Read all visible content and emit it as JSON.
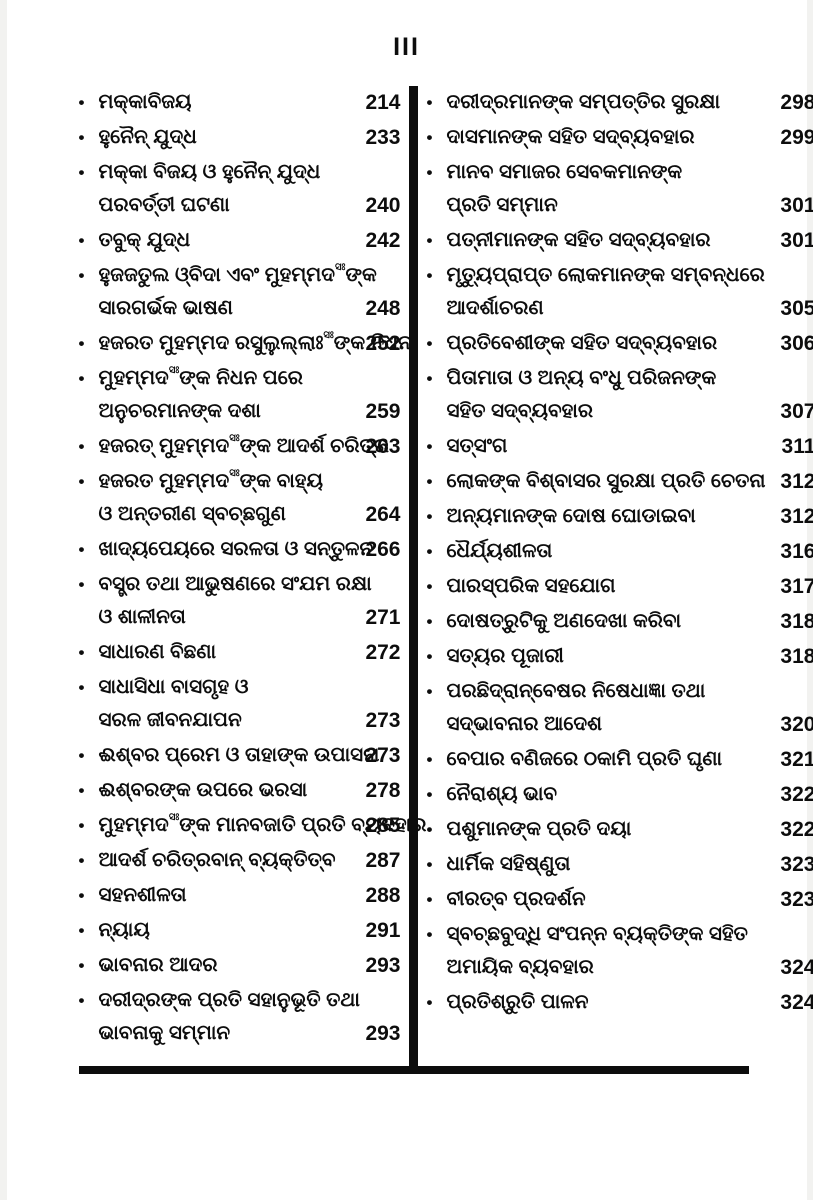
{
  "page": {
    "folio": "III",
    "honorific_mark": "ସଃ"
  },
  "colors": {
    "ink": "#0d0d0d",
    "paper": "#ffffff"
  },
  "toc": {
    "left_column": [
      {
        "lines": [
          "ମକ୍କାବିଜୟ"
        ],
        "page": "214"
      },
      {
        "lines": [
          "ହୁନୈନ୍ ଯୁଦ୍ଧ"
        ],
        "page": "233"
      },
      {
        "lines": [
          "ମକ୍କା ବିଜୟ ଓ ହୁନୈନ୍ ଯୁଦ୍ଧ",
          "ପରବର୍ତ୍ତୀ ଘଟଣା"
        ],
        "page": "240"
      },
      {
        "lines": [
          "ତବୁକ୍ ଯୁଦ୍ଧ"
        ],
        "page": "242"
      },
      {
        "lines": [
          "ହୁଜଜତୁଲ ଓ୍ବିଦା ଏବଂ ମୁହମ୍ମଦ{sa}ଙ୍କ",
          "ସାରଗର୍ଭକ ଭାଷଣ"
        ],
        "page": "248"
      },
      {
        "lines": [
          "ହଜରତ ମୁହମ୍ମଦ ରସୁଲୁଲ୍ଲାଃ{sa}ଙ୍କ ନିଧନ"
        ],
        "page": "252"
      },
      {
        "lines": [
          "ମୁହମ୍ମଦ{sa}ଙ୍କ ନିଧନ ପରେ",
          "ଅନୁଚରମାନଙ୍କ ଦଶା"
        ],
        "page": "259"
      },
      {
        "lines": [
          "ହଜରତ୍ ମୁହମ୍ମଦ{sa}ଙ୍କ ଆଦର୍ଶ ଚରିତ୍ର"
        ],
        "page": "263"
      },
      {
        "lines": [
          "ହଜରତ ମୁହମ୍ମଦ{sa}ଙ୍କ ବାହ୍ୟ",
          "ଓ ଅନ୍ତରୀଣ ସ୍ବଚ୍ଛଗୁଣ"
        ],
        "page": "264"
      },
      {
        "lines": [
          "ଖାଦ୍ୟପେୟରେ ସରଳତା ଓ ସନ୍ତୁଳନ"
        ],
        "page": "266"
      },
      {
        "lines": [
          "ବସ୍ତ୍ର ତଥା ଆଭୁଷଣରେ ସଂଯମ ରକ୍ଷା",
          "ଓ ଶାଳୀନତା"
        ],
        "page": "271"
      },
      {
        "lines": [
          "ସାଧାରଣ ବିଛଣା"
        ],
        "page": "272"
      },
      {
        "lines": [
          "ସାଧାସିଧା ବାସଗୃହ ଓ",
          "ସରଳ ଜୀବନଯାପନ"
        ],
        "page": "273"
      },
      {
        "lines": [
          "ଈଶ୍ବର ପ୍ରେମ ଓ ତାହାଙ୍କ ଉପାସନା"
        ],
        "page": "273"
      },
      {
        "lines": [
          "ଈଶ୍ବରଙ୍କ ଉପରେ ଭରସା"
        ],
        "page": "278"
      },
      {
        "lines": [
          "ମୁହମ୍ମଦ{sa}ଙ୍କ ମାନବଜାତି ପ୍ରତି ବ୍ୟବହାର"
        ],
        "page": "285"
      },
      {
        "lines": [
          "ଆଦର୍ଶ ଚରିତ୍ରବାନ୍ ବ୍ୟକ୍ତିତ୍ବ"
        ],
        "page": "287"
      },
      {
        "lines": [
          "ସହନଶୀଳତା"
        ],
        "page": "288"
      },
      {
        "lines": [
          "ନ୍ୟାୟ"
        ],
        "page": "291"
      },
      {
        "lines": [
          "ଭାବନାର ଆଦର"
        ],
        "page": "293"
      },
      {
        "lines": [
          "ଦରୀଦ୍ରଙ୍କ ପ୍ରତି ସହାନୁଭୂତି ତଥା",
          "ଭାବନାକୁ ସମ୍ମାନ"
        ],
        "page": "293"
      }
    ],
    "right_column": [
      {
        "lines": [
          "ଦରୀଦ୍ରମାନଙ୍କ ସମ୍ପତ୍ତିର ସୁରକ୍ଷା"
        ],
        "page": "298"
      },
      {
        "lines": [
          "ଦାସମାନଙ୍କ ସହିତ ସଦ୍ବ୍ୟବହାର"
        ],
        "page": "299"
      },
      {
        "lines": [
          "ମାନବ ସମାଜର ସେବକମାନଙ୍କ",
          "ପ୍ରତି ସମ୍ମାନ"
        ],
        "page": "301"
      },
      {
        "lines": [
          "ପତ୍ନୀମାନଙ୍କ ସହିତ ସଦ୍ବ୍ୟବହାର"
        ],
        "page": "301"
      },
      {
        "lines": [
          "ମୃତ୍ୟୁପ୍ରାପ୍ତ ଲୋକମାନଙ୍କ ସମ୍ବନ୍ଧରେ",
          "ଆଦର୍ଶାଚରଣ"
        ],
        "page": "305"
      },
      {
        "lines": [
          "ପ୍ରତିବେଶୀଙ୍କ ସହିତ ସଦ୍ବ୍ୟବହାର"
        ],
        "page": "306"
      },
      {
        "lines": [
          "ପିତାମାତା ଓ ଅନ୍ୟ ବଂଧୁ ପରିଜନଙ୍କ",
          "ସହିତ ସଦ୍ବ୍ୟବହାର"
        ],
        "page": "307"
      },
      {
        "lines": [
          "ସତ୍ସଂଗ"
        ],
        "page": "311"
      },
      {
        "lines": [
          "ଲୋକଙ୍କ ବିଶ୍ବାସର ସୁରକ୍ଷା ପ୍ରତି ଚେତନା"
        ],
        "page": "312"
      },
      {
        "lines": [
          "ଅନ୍ୟମାନଙ୍କ ଦୋଷ ଘୋଡାଇବା"
        ],
        "page": "312"
      },
      {
        "lines": [
          "ଧୈର୍ଯ୍ୟଶୀଳତା"
        ],
        "page": "316"
      },
      {
        "lines": [
          "ପାରସ୍ପରିକ ସହଯୋଗ"
        ],
        "page": "317"
      },
      {
        "lines": [
          "ଦୋଷତ୍ରୁଟିକୁ ଅଣଦେଖା କରିବା"
        ],
        "page": "318"
      },
      {
        "lines": [
          "ସତ୍ୟର ପୂଜାରୀ"
        ],
        "page": "318"
      },
      {
        "lines": [
          "ପରଛିଦ୍ରାନ୍ବେଷର ନିଷେଧାଜ୍ଞା ତଥା",
          "ସଦ୍ଭାବନାର ଆଦେଶ"
        ],
        "page": "320"
      },
      {
        "lines": [
          "ବେପାର ବଣିଜରେ ଠକାମି ପ୍ରତି ଘୃଣା"
        ],
        "page": "321"
      },
      {
        "lines": [
          "ନୈରାଶ୍ୟ ଭାବ"
        ],
        "page": "322"
      },
      {
        "lines": [
          "ପଶୁମାନଙ୍କ ପ୍ରତି ଦୟା"
        ],
        "page": "322"
      },
      {
        "lines": [
          "ଧାର୍ମିକ ସହିଷ୍ଣୁତା"
        ],
        "page": "323"
      },
      {
        "lines": [
          "ବୀରତ୍ବ ପ୍ରଦର୍ଶନ"
        ],
        "page": "323"
      },
      {
        "lines": [
          "ସ୍ବଚ୍ଛବୁଦ୍ଧି ସଂପନ୍ନ ବ୍ୟକ୍ତିଙ୍କ ସହିତ",
          "ଅମାୟିକ ବ୍ୟବହାର"
        ],
        "page": "324"
      },
      {
        "lines": [
          "ପ୍ରତିଶ୍ରୁତି ପାଳନ"
        ],
        "page": "324"
      }
    ]
  }
}
